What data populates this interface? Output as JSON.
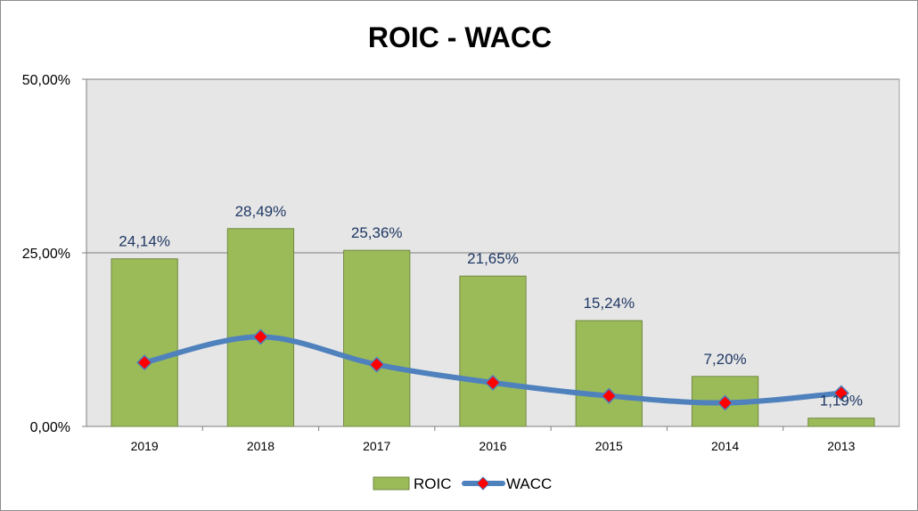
{
  "chart_data": {
    "type": "bar",
    "title": "ROIC - WACC",
    "categories": [
      "2019",
      "2018",
      "2017",
      "2016",
      "2015",
      "2014",
      "2013"
    ],
    "series": [
      {
        "name": "ROIC",
        "kind": "bar",
        "color": "#9bbb59",
        "values": [
          24.14,
          28.49,
          25.36,
          21.65,
          15.24,
          7.2,
          1.19
        ],
        "labels": [
          "24,14%",
          "28,49%",
          "25,36%",
          "21,65%",
          "15,24%",
          "7,20%",
          "1,19%"
        ]
      },
      {
        "name": "WACC",
        "kind": "line",
        "color": "#4f81bd",
        "marker_color": "#ff0000",
        "values": [
          9.2,
          12.9,
          8.9,
          6.3,
          4.4,
          3.4,
          4.8
        ]
      }
    ],
    "yticks": [
      "0,00%",
      "25,00%",
      "50,00%"
    ],
    "ytick_values": [
      0,
      25,
      50
    ],
    "ylim": [
      0,
      50
    ],
    "plot_background": "#e6e6e6",
    "grid": true,
    "legend_position": "bottom"
  }
}
